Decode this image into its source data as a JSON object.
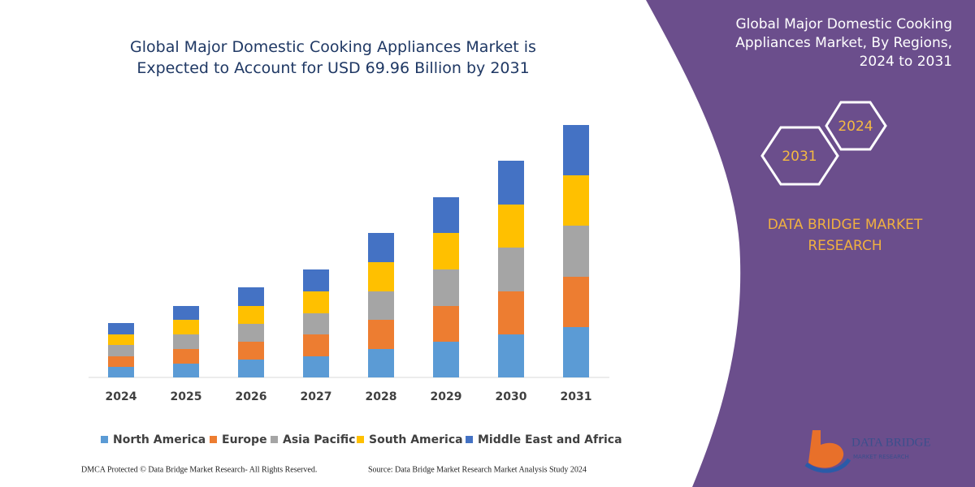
{
  "chart_data": {
    "type": "bar",
    "stacked": true,
    "title": "Global Major Domestic Cooking Appliances Market is Expected to Account for USD 69.96 Billion by 2031",
    "categories": [
      "2024",
      "2025",
      "2026",
      "2027",
      "2028",
      "2029",
      "2030",
      "2031"
    ],
    "series": [
      {
        "name": "North America",
        "color": "#5b9bd5",
        "values": [
          13,
          17,
          22,
          26,
          35,
          44,
          53,
          62
        ]
      },
      {
        "name": "Europe",
        "color": "#ed7d31",
        "values": [
          13,
          18,
          22,
          27,
          36,
          44,
          53,
          62
        ]
      },
      {
        "name": "Asia Pacific",
        "color": "#a5a5a5",
        "values": [
          14,
          18,
          22,
          26,
          35,
          45,
          54,
          63
        ]
      },
      {
        "name": "South America",
        "color": "#ffc000",
        "values": [
          13,
          18,
          22,
          27,
          36,
          45,
          53,
          62
        ]
      },
      {
        "name": "Middle East and Africa",
        "color": "#4472c4",
        "values": [
          14,
          17,
          23,
          27,
          36,
          44,
          54,
          62
        ]
      }
    ]
  },
  "panel": {
    "title": "Global Major Domestic Cooking Appliances Market, By Regions, 2024 to 2031",
    "hexagons": [
      "2024",
      "2031"
    ],
    "brand": "DATA BRIDGE MARKET RESEARCH"
  },
  "logo": {
    "name": "DATA BRIDGE",
    "tagline": "MARKET RESEARCH"
  },
  "footer": {
    "left": "DMCA Protected © Data Bridge Market Research- All Rights Reserved.",
    "right": "Source: Data Bridge Market Research Market Analysis Study 2024"
  }
}
